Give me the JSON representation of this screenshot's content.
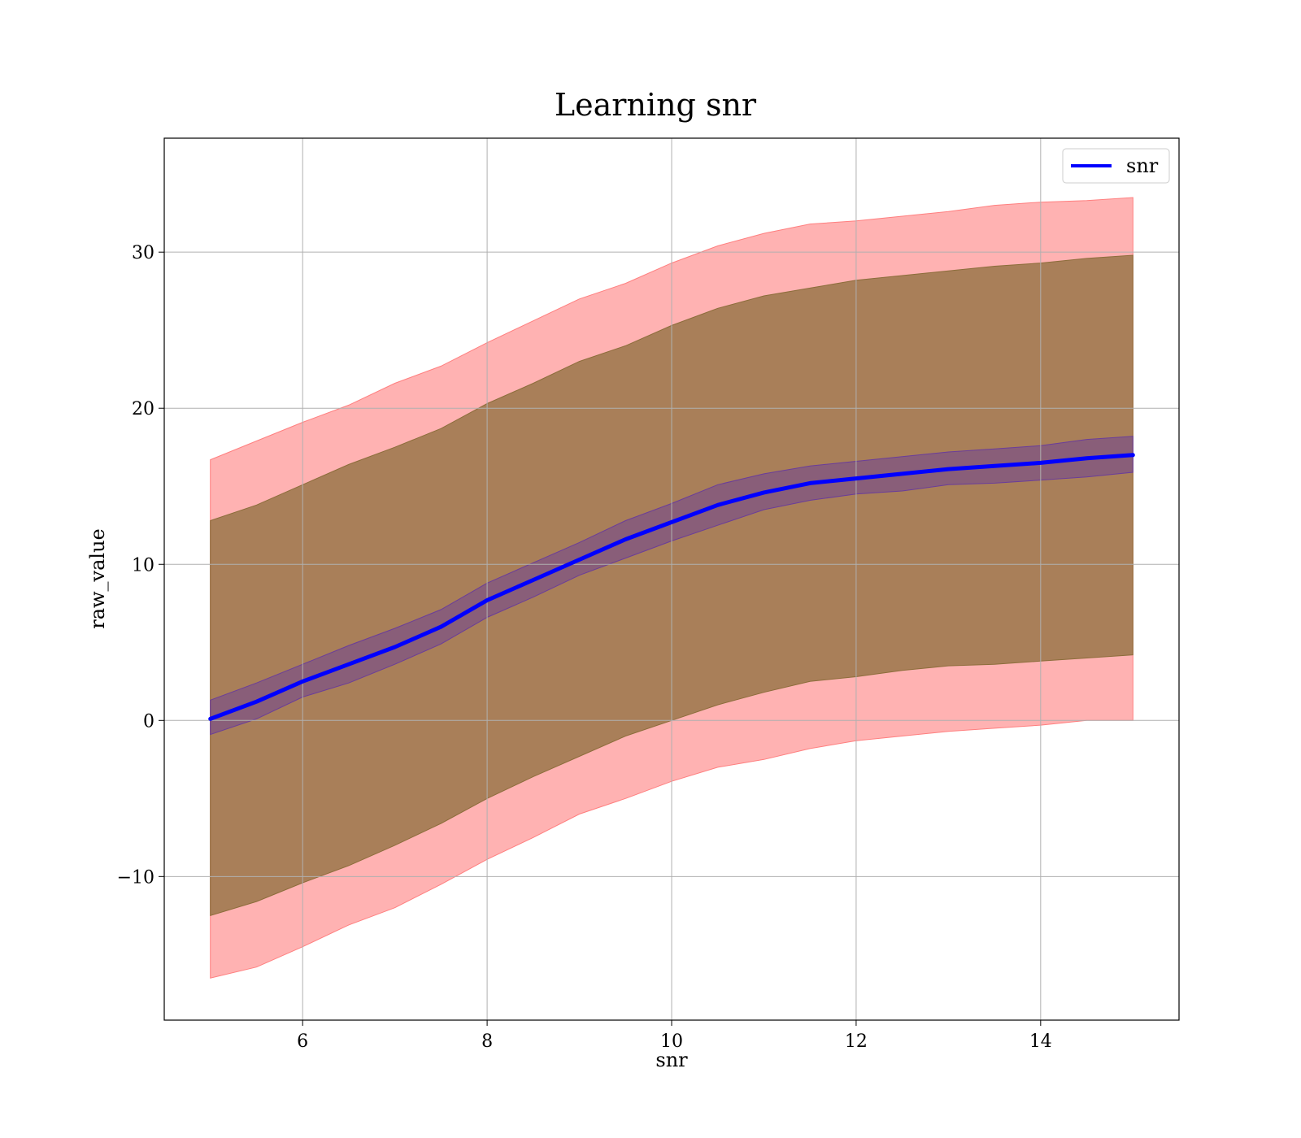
{
  "chart_data": {
    "type": "line",
    "title": "Learning snr",
    "xlabel": "snr",
    "ylabel": "raw_value",
    "xlim": [
      4.5,
      15.5
    ],
    "ylim": [
      -19.2,
      37.3
    ],
    "xticks": [
      6,
      8,
      10,
      12,
      14
    ],
    "yticks": [
      -10,
      0,
      10,
      20,
      30
    ],
    "xtick_labels": [
      "6",
      "8",
      "10",
      "12",
      "14"
    ],
    "ytick_labels": [
      "−10",
      "0",
      "10",
      "20",
      "30"
    ],
    "grid": true,
    "legend": {
      "position": "top-right",
      "entries": [
        "snr"
      ]
    },
    "x": [
      5.0,
      5.5,
      6.0,
      6.5,
      7.0,
      7.5,
      8.0,
      8.5,
      9.0,
      9.5,
      10.0,
      10.5,
      11.0,
      11.5,
      12.0,
      12.5,
      13.0,
      13.5,
      14.0,
      14.5,
      15.0
    ],
    "series": [
      {
        "name": "snr",
        "color": "#0000ff",
        "values": [
          0.1,
          1.2,
          2.5,
          3.6,
          4.7,
          6.0,
          7.7,
          9.0,
          10.3,
          11.6,
          12.7,
          13.8,
          14.6,
          15.2,
          15.5,
          15.8,
          16.1,
          16.3,
          16.5,
          16.8,
          17.0
        ]
      }
    ],
    "bands": [
      {
        "color": "#ff7f7f",
        "lower": [
          -16.5,
          -15.8,
          -14.5,
          -13.1,
          -12.0,
          -10.5,
          -8.9,
          -7.5,
          -6.0,
          -5.0,
          -3.9,
          -3.0,
          -2.5,
          -1.8,
          -1.3,
          -1.0,
          -0.7,
          -0.5,
          -0.3,
          0.0,
          0.0
        ],
        "upper": [
          16.7,
          17.9,
          19.1,
          20.2,
          21.6,
          22.7,
          24.2,
          25.6,
          27.0,
          28.0,
          29.3,
          30.4,
          31.2,
          31.8,
          32.0,
          32.3,
          32.6,
          33.0,
          33.2,
          33.3,
          33.5
        ]
      },
      {
        "color": "#8c6d3b",
        "lower": [
          -12.5,
          -11.6,
          -10.4,
          -9.3,
          -8.0,
          -6.6,
          -5.0,
          -3.6,
          -2.3,
          -1.0,
          0.0,
          1.0,
          1.8,
          2.5,
          2.8,
          3.2,
          3.5,
          3.6,
          3.8,
          4.0,
          4.2
        ],
        "upper": [
          12.8,
          13.8,
          15.1,
          16.4,
          17.5,
          18.7,
          20.3,
          21.6,
          23.0,
          24.0,
          25.3,
          26.4,
          27.2,
          27.7,
          28.2,
          28.5,
          28.8,
          29.1,
          29.3,
          29.6,
          29.8
        ]
      },
      {
        "color": "#6a3d9a",
        "lower": [
          -0.9,
          0.1,
          1.5,
          2.4,
          3.6,
          4.9,
          6.6,
          7.9,
          9.3,
          10.4,
          11.5,
          12.5,
          13.5,
          14.1,
          14.5,
          14.7,
          15.1,
          15.2,
          15.4,
          15.6,
          15.9
        ],
        "upper": [
          1.3,
          2.4,
          3.6,
          4.8,
          5.9,
          7.1,
          8.8,
          10.1,
          11.4,
          12.8,
          13.9,
          15.1,
          15.8,
          16.3,
          16.6,
          16.9,
          17.2,
          17.4,
          17.6,
          18.0,
          18.2
        ]
      }
    ]
  }
}
